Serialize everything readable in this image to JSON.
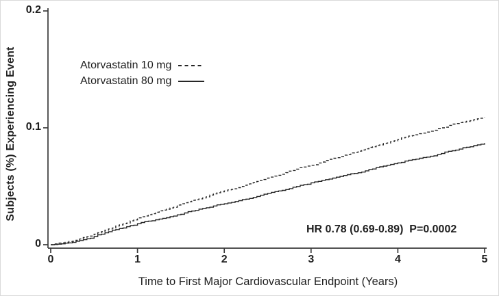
{
  "figure": {
    "background": "#ffffff",
    "border_color": "#d9d9d9"
  },
  "colors": {
    "line": "#262626",
    "axis": "#3a3a3a",
    "text": "#1f1f1f"
  },
  "chart_data": {
    "type": "line",
    "subtype": "kaplan-meier-cumulative-incidence",
    "title": "",
    "xlabel": "Time to First Major Cardiovascular Endpoint (Years)",
    "ylabel": "Subjects (%) Experiencing Event",
    "annotation": "HR 0.78 (0.69-0.89)  P=0.0002",
    "xlim": [
      0,
      5
    ],
    "ylim": [
      0,
      0.2
    ],
    "grid": false,
    "legend_position": "upper-left-inside",
    "x_ticks": [
      "0",
      "1",
      "2",
      "3",
      "4",
      "5"
    ],
    "x_tick_values": [
      0,
      1,
      2,
      3,
      4,
      5
    ],
    "y_ticks": [
      "0",
      "0.1",
      "0.2"
    ],
    "y_tick_values": [
      0,
      0.1,
      0.2
    ],
    "x": [
      0,
      0.25,
      0.5,
      0.75,
      1,
      1.25,
      1.5,
      1.75,
      2,
      2.25,
      2.5,
      2.75,
      3,
      3.25,
      3.5,
      3.75,
      4,
      4.25,
      4.5,
      4.75,
      5
    ],
    "series": [
      {
        "name": "Atorvastatin 10 mg",
        "style": "dashed",
        "values": [
          0,
          0.003,
          0.009,
          0.016,
          0.023,
          0.029,
          0.035,
          0.04,
          0.046,
          0.051,
          0.057,
          0.063,
          0.068,
          0.074,
          0.079,
          0.085,
          0.09,
          0.095,
          0.1,
          0.105,
          0.109
        ]
      },
      {
        "name": "Atorvastatin 80 mg",
        "style": "solid",
        "values": [
          0,
          0.002,
          0.007,
          0.013,
          0.018,
          0.022,
          0.026,
          0.031,
          0.035,
          0.039,
          0.044,
          0.048,
          0.053,
          0.057,
          0.061,
          0.066,
          0.07,
          0.074,
          0.078,
          0.083,
          0.087
        ]
      }
    ]
  }
}
